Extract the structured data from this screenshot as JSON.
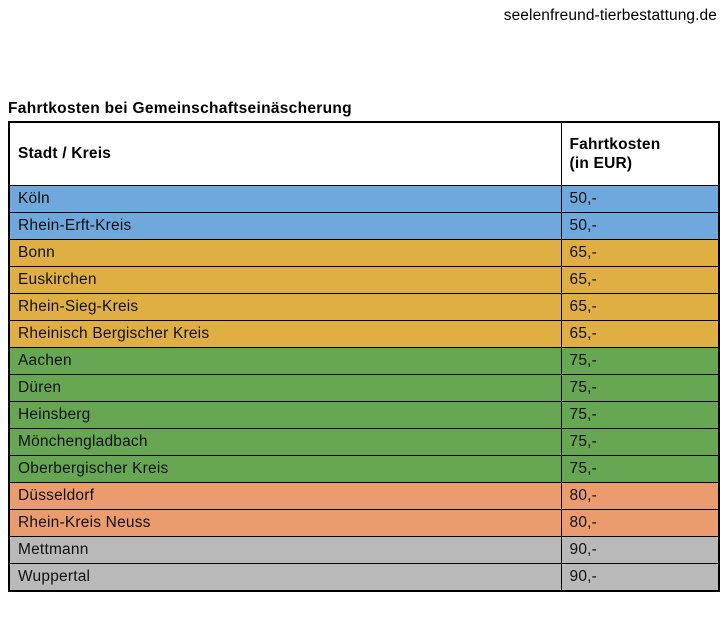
{
  "site": {
    "domain": "seelenfreund-tierbestattung.de"
  },
  "title": "Fahrtkosten bei Gemeinschaftseinäscherung",
  "colors": {
    "group_50": "#6FA8DC",
    "group_65": "#E0AF44",
    "group_75": "#67A754",
    "group_80": "#EB9C6F",
    "group_90": "#B9B9B9",
    "border": "#000000",
    "header_bg": "#FFFFFF"
  },
  "table": {
    "header": {
      "col1": "Stadt / Kreis",
      "col2_line1": "Fahrtkosten",
      "col2_line2": "(in EUR)"
    },
    "rows": [
      {
        "name": "Köln",
        "cost": "50,-",
        "color": "#6FA8DC"
      },
      {
        "name": "Rhein-Erft-Kreis",
        "cost": "50,-",
        "color": "#6FA8DC"
      },
      {
        "name": "Bonn",
        "cost": "65,-",
        "color": "#E0AF44"
      },
      {
        "name": "Euskirchen",
        "cost": "65,-",
        "color": "#E0AF44"
      },
      {
        "name": "Rhein-Sieg-Kreis",
        "cost": "65,-",
        "color": "#E0AF44"
      },
      {
        "name": "Rheinisch Bergischer Kreis",
        "cost": "65,-",
        "color": "#E0AF44"
      },
      {
        "name": "Aachen",
        "cost": "75,-",
        "color": "#67A754"
      },
      {
        "name": "Düren",
        "cost": "75,-",
        "color": "#67A754"
      },
      {
        "name": "Heinsberg",
        "cost": "75,-",
        "color": "#67A754"
      },
      {
        "name": "Mönchengladbach",
        "cost": "75,-",
        "color": "#67A754"
      },
      {
        "name": "Oberbergischer Kreis",
        "cost": "75,-",
        "color": "#67A754"
      },
      {
        "name": "Düsseldorf",
        "cost": "80,-",
        "color": "#EB9C6F"
      },
      {
        "name": "Rhein-Kreis Neuss",
        "cost": "80,-",
        "color": "#EB9C6F"
      },
      {
        "name": "Mettmann",
        "cost": "90,-",
        "color": "#B9B9B9"
      },
      {
        "name": "Wuppertal",
        "cost": "90,-",
        "color": "#B9B9B9"
      }
    ]
  }
}
